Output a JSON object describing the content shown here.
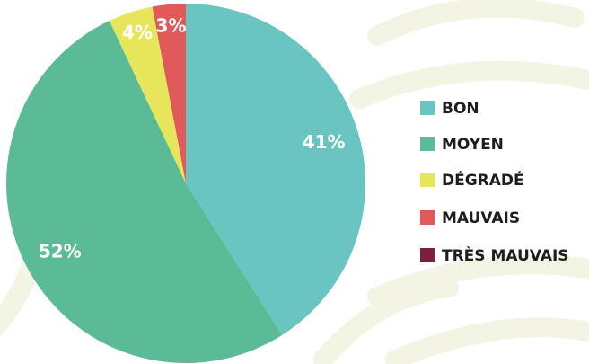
{
  "chart_data": {
    "type": "pie",
    "categories": [
      "BON",
      "MOYEN",
      "DÉGRADÉ",
      "MAUVAIS",
      "TRÈS MAUVAIS"
    ],
    "values": [
      41,
      52,
      4,
      3,
      0
    ],
    "value_labels": [
      "41%",
      "52%",
      "4%",
      "3%",
      null
    ],
    "colors": [
      "#6ac4c0",
      "#5cbb97",
      "#e7e65b",
      "#e05a5a",
      "#7b1f3b"
    ],
    "legend": "right"
  }
}
